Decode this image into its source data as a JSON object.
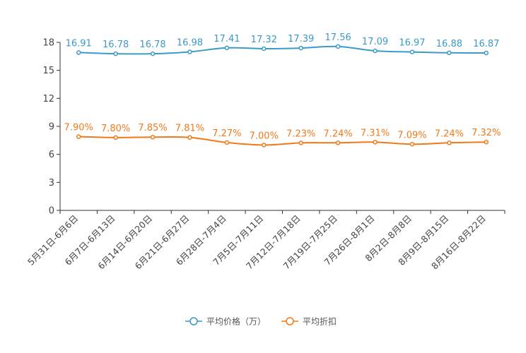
{
  "chart_data": {
    "type": "line",
    "categories": [
      "5月31日-6月6日",
      "6月7日-6月13日",
      "6月14日-6月20日",
      "6月21日-6月27日",
      "6月28日-7月4日",
      "7月5日-7月11日",
      "7月12日-7月18日",
      "7月19日-7月25日",
      "7月26日-8月1日",
      "8月2日-8月8日",
      "8月9日-8月15日",
      "8月16日-8月22日"
    ],
    "series": [
      {
        "name": "平均价格（万）",
        "color": "#3a9ac9",
        "values": [
          16.91,
          16.78,
          16.78,
          16.98,
          17.41,
          17.32,
          17.39,
          17.56,
          17.09,
          16.97,
          16.88,
          16.87
        ],
        "labels": [
          "16.91",
          "16.78",
          "16.78",
          "16.98",
          "17.41",
          "17.32",
          "17.39",
          "17.56",
          "17.09",
          "16.97",
          "16.88",
          "16.87"
        ]
      },
      {
        "name": "平均折扣",
        "color": "#f07a1a",
        "values": [
          7.9,
          7.8,
          7.85,
          7.81,
          7.27,
          7.0,
          7.23,
          7.24,
          7.31,
          7.09,
          7.24,
          7.32
        ],
        "labels": [
          "7.90%",
          "7.80%",
          "7.85%",
          "7.81%",
          "7.27%",
          "7.00%",
          "7.23%",
          "7.24%",
          "7.31%",
          "7.09%",
          "7.24%",
          "7.32%"
        ]
      }
    ],
    "yticks": [
      0,
      3,
      6,
      9,
      12,
      15,
      18
    ],
    "ylim": [
      0,
      18
    ],
    "legend_position": "bottom-center",
    "title": "",
    "xlabel": "",
    "ylabel": ""
  }
}
